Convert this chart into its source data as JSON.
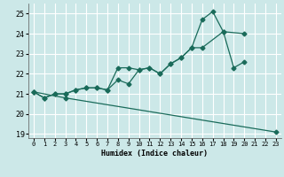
{
  "xlabel": "Humidex (Indice chaleur)",
  "bg_color": "#cce8e8",
  "grid_color": "#ffffff",
  "line_color": "#1a6b5a",
  "xlim": [
    -0.5,
    23.5
  ],
  "ylim": [
    18.8,
    25.5
  ],
  "xticks": [
    0,
    1,
    2,
    3,
    4,
    5,
    6,
    7,
    8,
    9,
    10,
    11,
    12,
    13,
    14,
    15,
    16,
    17,
    18,
    19,
    20,
    21,
    22,
    23
  ],
  "yticks": [
    19,
    20,
    21,
    22,
    23,
    24,
    25
  ],
  "line1_x": [
    0,
    1,
    2,
    3,
    4,
    5,
    6,
    7,
    8,
    9,
    10,
    11,
    12,
    13,
    14,
    15,
    16,
    17,
    18,
    19,
    20
  ],
  "line1_y": [
    21.1,
    20.8,
    21.0,
    21.0,
    21.2,
    21.3,
    21.3,
    21.2,
    21.7,
    21.5,
    22.2,
    22.3,
    22.0,
    22.5,
    22.8,
    23.3,
    24.7,
    25.1,
    24.1,
    22.3,
    22.6
  ],
  "line2_x": [
    0,
    1,
    2,
    3,
    4,
    5,
    6,
    7,
    8,
    9,
    10,
    11,
    12,
    13,
    14,
    15,
    16,
    18,
    20
  ],
  "line2_y": [
    21.1,
    20.8,
    21.0,
    21.0,
    21.2,
    21.3,
    21.3,
    21.2,
    22.3,
    22.3,
    22.2,
    22.3,
    22.0,
    22.5,
    22.8,
    23.3,
    23.3,
    24.1,
    24.0
  ],
  "line3_x": [
    0,
    3,
    23
  ],
  "line3_y": [
    21.1,
    20.8,
    19.1
  ]
}
